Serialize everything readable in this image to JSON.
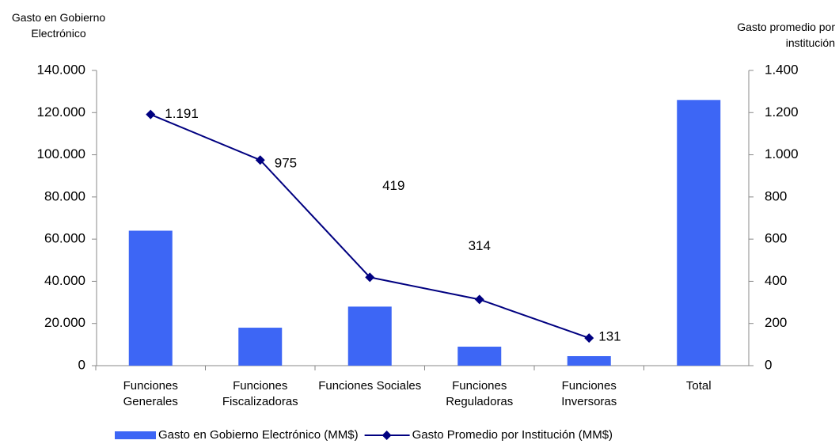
{
  "chart_data": {
    "type": "bar-line",
    "y_label": "Gasto en Gobierno Electrónico",
    "y2_label": "Gasto promedio por institución",
    "categories": [
      "Funciones Generales",
      "Funciones Fiscalizadoras",
      "Funciones Sociales",
      "Funciones Reguladoras",
      "Funciones Inversoras",
      "Total"
    ],
    "series": [
      {
        "name": "Gasto en Gobierno Electrónico (MM$)",
        "type": "bar",
        "color": "#3d66f5",
        "values": [
          64000,
          18000,
          28000,
          9000,
          4500,
          126000
        ]
      },
      {
        "name": "Gasto Promedio por Institución (MM$)",
        "type": "line",
        "axis": "y2",
        "color": "#000080",
        "values": [
          1191,
          975,
          419,
          314,
          131,
          null
        ],
        "value_labels": [
          "1.191",
          "975",
          "419",
          "314",
          "131",
          null
        ]
      }
    ],
    "ylim": [
      0,
      140000
    ],
    "yticks": [
      {
        "value": 0,
        "label": "0"
      },
      {
        "value": 20000,
        "label": "20.000"
      },
      {
        "value": 40000,
        "label": "40.000"
      },
      {
        "value": 60000,
        "label": "60.000"
      },
      {
        "value": 80000,
        "label": "80.000"
      },
      {
        "value": 100000,
        "label": "100.000"
      },
      {
        "value": 120000,
        "label": "120.000"
      },
      {
        "value": 140000,
        "label": "140.000"
      }
    ],
    "y2lim": [
      0,
      1400
    ],
    "y2ticks": [
      0,
      200,
      400,
      600,
      800,
      {
        "value": 1000,
        "label": "1.000"
      },
      {
        "value": 1200,
        "label": "1.200"
      },
      {
        "value": 1400,
        "label": "1.400"
      }
    ]
  }
}
